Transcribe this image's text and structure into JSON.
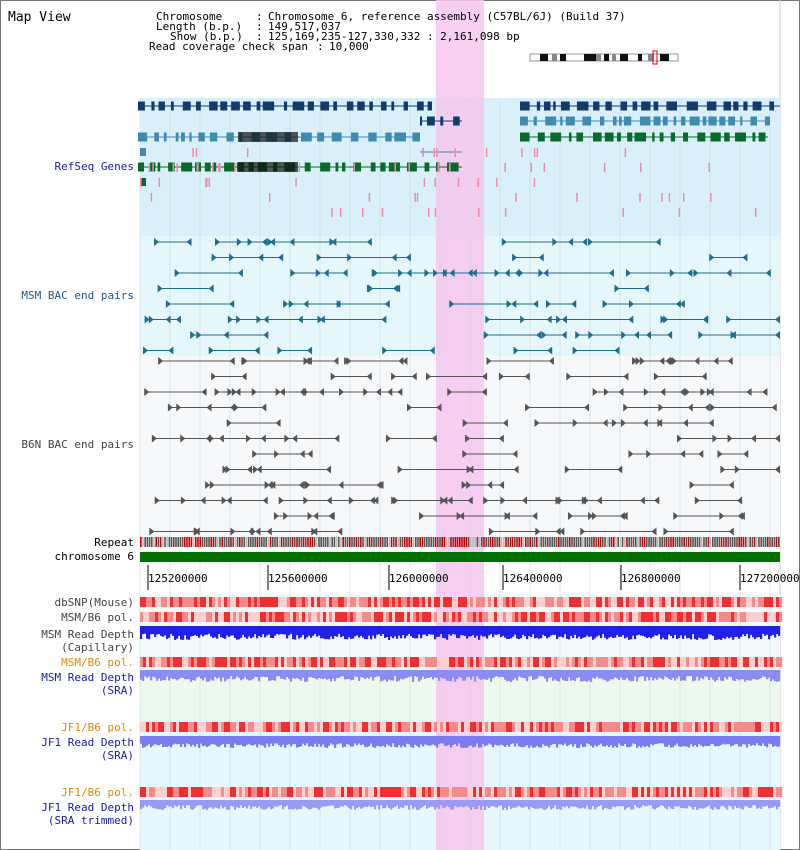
{
  "title": "Map View",
  "info": {
    "chromosome_label": "Chromosome",
    "chromosome_value": "Chromosome 6, reference assembly (C57BL/6J) (Build 37)",
    "length_label": "Length (b.p.)",
    "length_value": "149,517,037",
    "show_label": "Show (b.p.)",
    "show_value": "125,169,235-127,330,332 : 2,161,098 bp",
    "read_label": "Read coverage check span",
    "read_value": "10,000"
  },
  "tracks": {
    "refseq": "RefSeq Genes",
    "msm_bac": "MSM BAC end pairs",
    "b6n_bac": "B6N BAC end pairs",
    "repeat": "Repeat",
    "chromosome": "chromosome 6",
    "dbsnp": "dbSNP(Mouse)",
    "msm_b6_pol_1": "MSM/B6 pol.",
    "msm_depth_cap_1": "MSM Read Depth",
    "msm_depth_cap_2": "(Capillary)",
    "msm_b6_pol_2": "MSM/B6 pol.",
    "msm_depth_sra_1": "MSM Read Depth",
    "msm_depth_sra_2": "(SRA)",
    "jf1_b6_pol_1": "JF1/B6 pol.",
    "jf1_depth_sra_1": "JF1 Read Depth",
    "jf1_depth_sra_2": "(SRA)",
    "jf1_b6_pol_2": "JF1/B6 pol.",
    "jf1_depth_trim_1": "JF1 Read Depth",
    "jf1_depth_trim_2": "(SRA trimmed)"
  },
  "axis": {
    "ticks": [
      "125200000",
      "125600000",
      "126000000",
      "126400000",
      "126800000",
      "127200000"
    ]
  },
  "colors": {
    "refseq_label": "#1a1aa6",
    "msm_label": "#1a5a8a",
    "b6n_label": "#444444",
    "orange_label": "#e08a00",
    "blue_label": "#1a1aa6",
    "highlight": "#f7c6ee",
    "chromosome_bar": "#007000"
  }
}
